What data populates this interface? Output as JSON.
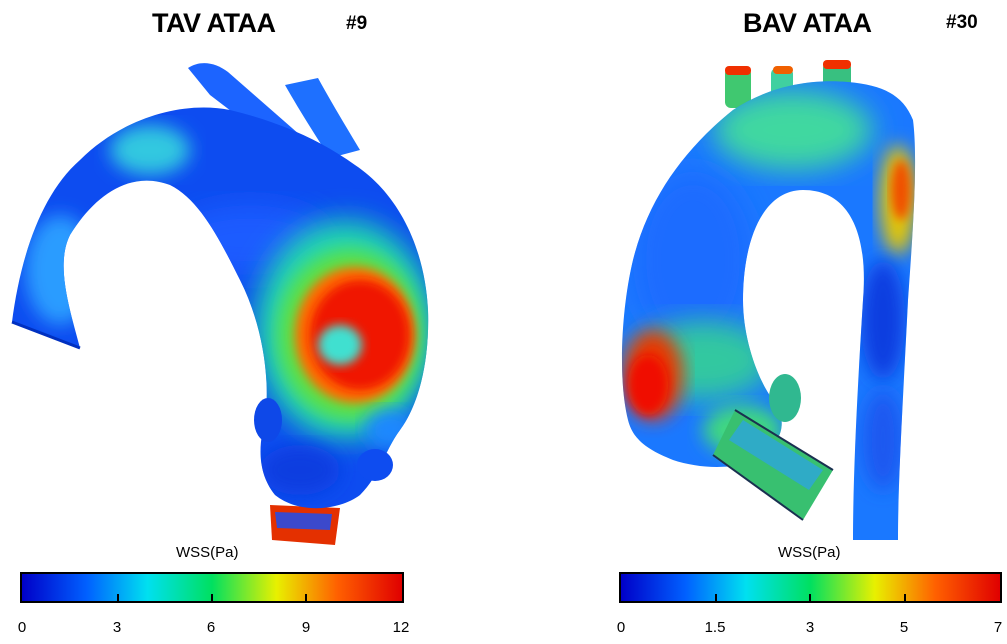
{
  "panels": [
    {
      "title": "TAV ATAA",
      "case_id": "#9",
      "colorbar": {
        "label": "WSS(Pa)",
        "range": [
          0,
          12
        ],
        "ticks": [
          "0",
          "3",
          "6",
          "9",
          "12"
        ],
        "colors": [
          "#0000c8",
          "#0060ff",
          "#00e0f0",
          "#00e060",
          "#e8f000",
          "#ff6000",
          "#e00000"
        ]
      }
    },
    {
      "title": "BAV ATAA",
      "case_id": "#30",
      "colorbar": {
        "label": "WSS(Pa)",
        "range": [
          0,
          7
        ],
        "ticks": [
          "0",
          "1.5",
          "3",
          "5",
          "7"
        ],
        "colors": [
          "#0000c8",
          "#0060ff",
          "#00e0f0",
          "#00e060",
          "#e8f000",
          "#ff6000",
          "#e00000"
        ]
      }
    }
  ]
}
